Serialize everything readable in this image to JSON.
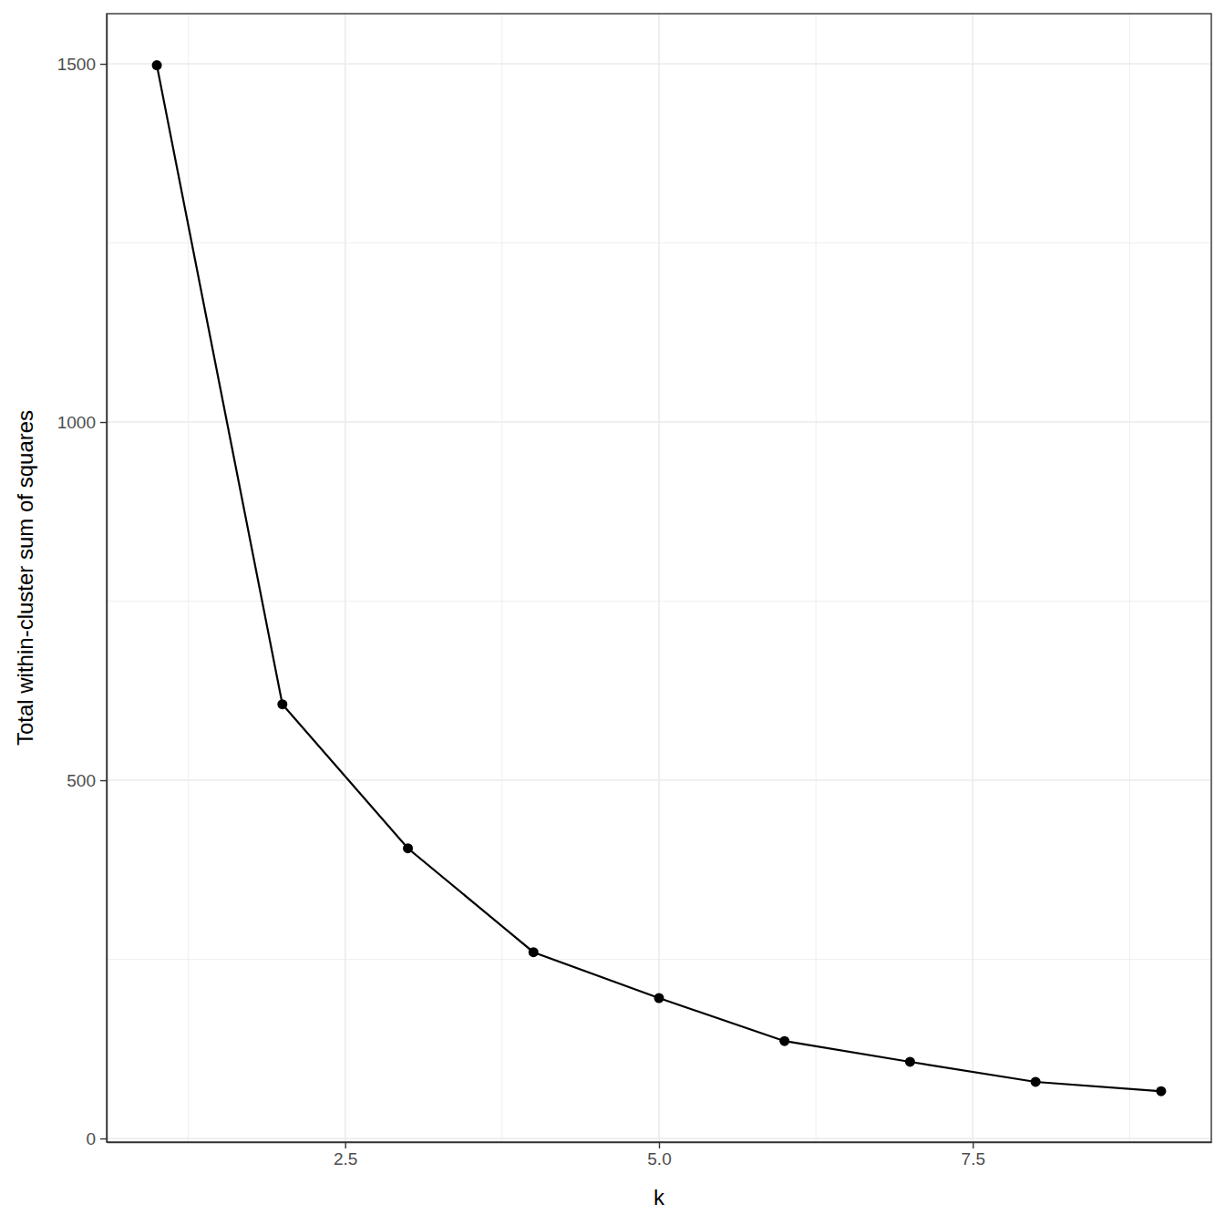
{
  "chart_data": {
    "type": "line",
    "marker": "circle",
    "color": "#000000",
    "x_label": "k",
    "y_label": "Total within-cluster sum of squares",
    "x": [
      1,
      2,
      3,
      4,
      5,
      6,
      7,
      8,
      9
    ],
    "values": [
      1498,
      606,
      405,
      260,
      196,
      136,
      107,
      79,
      66
    ],
    "xlim": [
      0.6,
      9.4
    ],
    "xticks": [
      2.5,
      {
        "value": 5,
        "label": "5.0"
      },
      7.5
    ],
    "ylim": [
      -5,
      1570
    ],
    "yticks": [
      0,
      500,
      1000,
      1500
    ],
    "grid": true
  }
}
